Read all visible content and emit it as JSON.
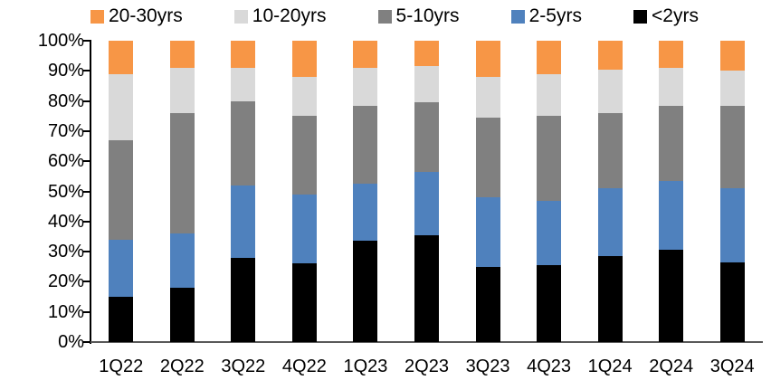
{
  "chart_data": {
    "type": "bar",
    "stacked": true,
    "percent_stacked": true,
    "title": "",
    "xlabel": "",
    "ylabel": "",
    "categories": [
      "1Q22",
      "2Q22",
      "3Q22",
      "4Q22",
      "1Q23",
      "2Q23",
      "3Q23",
      "4Q23",
      "1Q24",
      "2Q24",
      "3Q24"
    ],
    "series": [
      {
        "name": "<2yrs",
        "color": "#000000",
        "values": [
          15,
          18,
          28,
          26,
          33.5,
          35.5,
          25,
          25.5,
          28.5,
          30.5,
          26.5
        ]
      },
      {
        "name": "2-5yrs",
        "color": "#4F81BD",
        "values": [
          19,
          18,
          24,
          23,
          19,
          21,
          23,
          21.5,
          22.5,
          23,
          24.5
        ]
      },
      {
        "name": "5-10yrs",
        "color": "#808080",
        "values": [
          33,
          40,
          28,
          26,
          26,
          23,
          26.5,
          28,
          25,
          25,
          27.5
        ]
      },
      {
        "name": "10-20yrs",
        "color": "#D9D9D9",
        "values": [
          22,
          15,
          11,
          13,
          12.5,
          12,
          13.5,
          14,
          14.5,
          12.5,
          11.5
        ]
      },
      {
        "name": "20-30yrs",
        "color": "#F79646",
        "values": [
          11,
          9,
          9,
          12,
          9,
          8.5,
          12,
          11,
          9.5,
          9,
          10
        ]
      }
    ],
    "legend": {
      "position": "top",
      "order": [
        "20-30yrs",
        "10-20yrs",
        "5-10yrs",
        "2-5yrs",
        "<2yrs"
      ]
    },
    "yticks": [
      "0%",
      "10%",
      "20%",
      "30%",
      "40%",
      "50%",
      "60%",
      "70%",
      "80%",
      "90%",
      "100%"
    ],
    "ylim": [
      0,
      100
    ],
    "grid": false,
    "axis_colors": {
      "y_axis": "#000000",
      "x_axis": "#595959"
    }
  }
}
